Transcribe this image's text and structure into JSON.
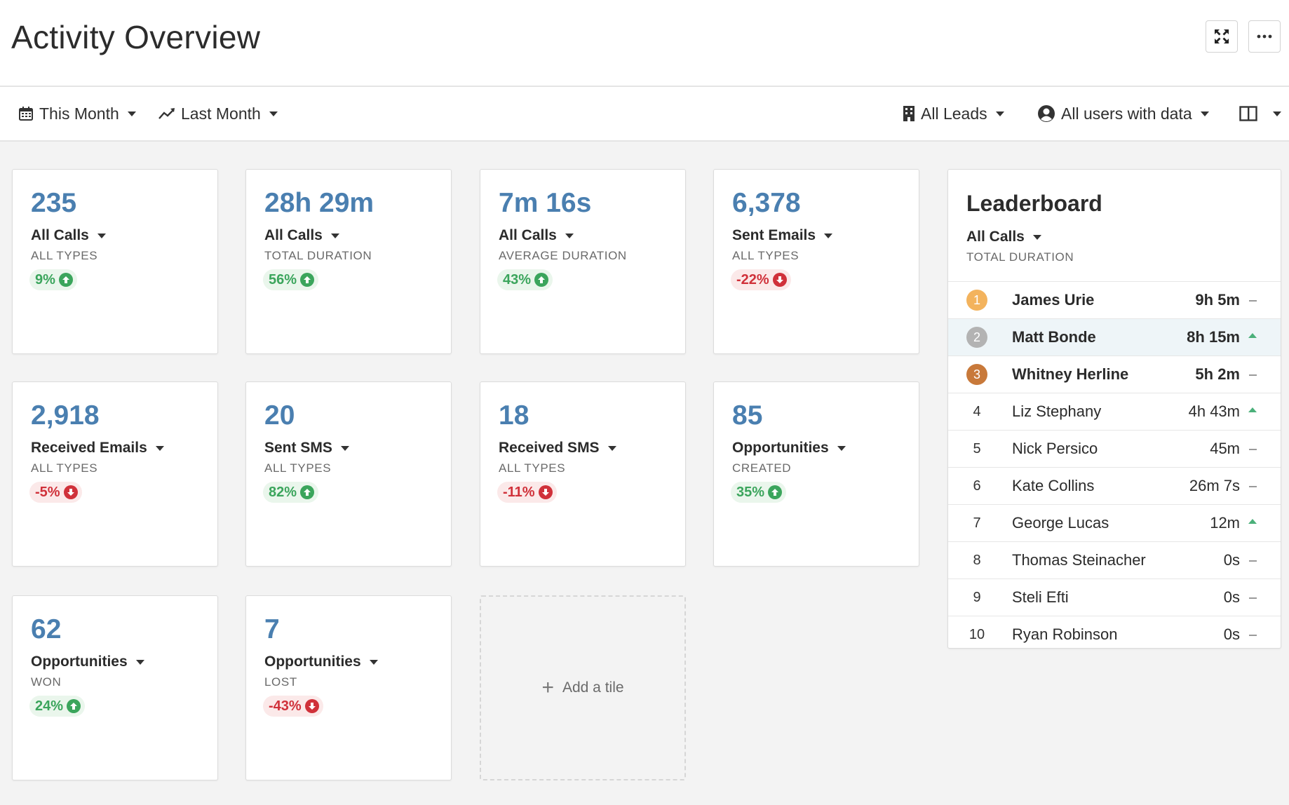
{
  "header": {
    "title": "Activity Overview",
    "fullscreen_icon": "expand-icon",
    "more_icon": "ellipsis-icon"
  },
  "filters": {
    "period": "This Month",
    "compare": "Last Month",
    "leads": "All Leads",
    "users": "All users with data",
    "layout_icon": "columns-icon"
  },
  "colors": {
    "value_blue": "#4a7fb0",
    "up_green": "#3ba55c",
    "down_red": "#d0313a",
    "gold": "#f3b35d",
    "silver": "#b3b3b3",
    "bronze": "#c8793a"
  },
  "tiles": [
    {
      "value": "235",
      "metric": "All Calls",
      "sub": "ALL TYPES",
      "change": "9%",
      "dir": "up"
    },
    {
      "value": "28h 29m",
      "metric": "All Calls",
      "sub": "TOTAL DURATION",
      "change": "56%",
      "dir": "up"
    },
    {
      "value": "7m 16s",
      "metric": "All Calls",
      "sub": "AVERAGE DURATION",
      "change": "43%",
      "dir": "up"
    },
    {
      "value": "6,378",
      "metric": "Sent Emails",
      "sub": "ALL TYPES",
      "change": "-22%",
      "dir": "down"
    },
    {
      "value": "2,918",
      "metric": "Received Emails",
      "sub": "ALL TYPES",
      "change": "-5%",
      "dir": "down"
    },
    {
      "value": "20",
      "metric": "Sent SMS",
      "sub": "ALL TYPES",
      "change": "82%",
      "dir": "up"
    },
    {
      "value": "18",
      "metric": "Received SMS",
      "sub": "ALL TYPES",
      "change": "-11%",
      "dir": "down"
    },
    {
      "value": "85",
      "metric": "Opportunities",
      "sub": "CREATED",
      "change": "35%",
      "dir": "up"
    },
    {
      "value": "62",
      "metric": "Opportunities",
      "sub": "WON",
      "change": "24%",
      "dir": "up"
    },
    {
      "value": "7",
      "metric": "Opportunities",
      "sub": "LOST",
      "change": "-43%",
      "dir": "down"
    }
  ],
  "add_tile": {
    "label": "Add a tile",
    "icon": "plus-icon"
  },
  "leaderboard": {
    "title": "Leaderboard",
    "metric": "All Calls",
    "sub": "TOTAL DURATION",
    "rows": [
      {
        "rank": "1",
        "name": "James Urie",
        "value": "9h 5m",
        "trend": "flat"
      },
      {
        "rank": "2",
        "name": "Matt Bonde",
        "value": "8h 15m",
        "trend": "up"
      },
      {
        "rank": "3",
        "name": "Whitney Herline",
        "value": "5h 2m",
        "trend": "flat"
      },
      {
        "rank": "4",
        "name": "Liz Stephany",
        "value": "4h 43m",
        "trend": "up"
      },
      {
        "rank": "5",
        "name": "Nick Persico",
        "value": "45m",
        "trend": "flat"
      },
      {
        "rank": "6",
        "name": "Kate Collins",
        "value": "26m 7s",
        "trend": "flat"
      },
      {
        "rank": "7",
        "name": "George Lucas",
        "value": "12m",
        "trend": "up"
      },
      {
        "rank": "8",
        "name": "Thomas Steinacher",
        "value": "0s",
        "trend": "flat"
      },
      {
        "rank": "9",
        "name": "Steli Efti",
        "value": "0s",
        "trend": "flat"
      },
      {
        "rank": "10",
        "name": "Ryan Robinson",
        "value": "0s",
        "trend": "flat"
      }
    ]
  }
}
